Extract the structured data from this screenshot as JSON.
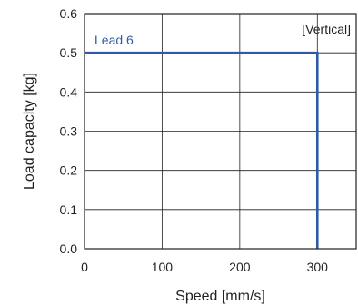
{
  "chart_data": {
    "type": "line",
    "xlabel": "Speed [mm/s]",
    "ylabel": "Load capacity [kg]",
    "xlim": [
      0,
      350
    ],
    "ylim": [
      0,
      0.6
    ],
    "x_ticks": [
      0,
      100,
      200,
      300
    ],
    "y_ticks": [
      0.0,
      0.1,
      0.2,
      0.3,
      0.4,
      0.5,
      0.6
    ],
    "x_tick_labels": [
      "0",
      "100",
      "200",
      "300"
    ],
    "y_tick_labels": [
      "0.0",
      "0.1",
      "0.2",
      "0.3",
      "0.4",
      "0.5",
      "0.6"
    ],
    "grid": true,
    "annotation": "[Vertical]",
    "series": [
      {
        "name": "Lead 6",
        "color": "#2e5aa8",
        "points": [
          {
            "x": 0,
            "y": 0.5
          },
          {
            "x": 300,
            "y": 0.5
          },
          {
            "x": 300,
            "y": 0
          }
        ]
      }
    ]
  }
}
